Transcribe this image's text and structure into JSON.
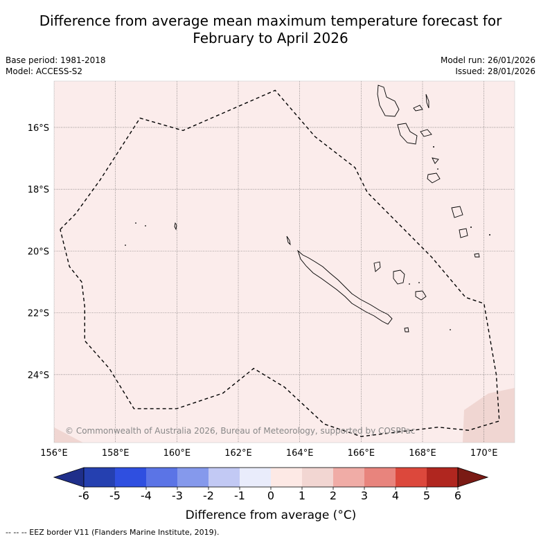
{
  "title_line1": "Difference from average mean maximum temperature forecast for",
  "title_line2": "February to April 2026",
  "base_period": "Base period: 1981-2018",
  "model": "Model: ACCESS-S2",
  "model_run": "Model run: 26/01/2026",
  "issued": "Issued: 28/01/2026",
  "copyright": "© Commonwealth of Australia 2026, Bureau of Meteorology, supported by COSPPac",
  "footnote": "--  --  -- EEZ border V11 (Flanders Marine Institute, 2019).",
  "chart_data": {
    "type": "map",
    "title": "Difference from average mean maximum temperature forecast for February to April 2026",
    "x_axis": {
      "min": 156,
      "max": 171,
      "ticks": [
        156,
        158,
        160,
        162,
        164,
        166,
        168,
        170
      ],
      "labels": [
        "156°E",
        "158°E",
        "160°E",
        "162°E",
        "164°E",
        "166°E",
        "168°E",
        "170°E"
      ]
    },
    "y_axis": {
      "min": -26.2,
      "max": -14.5,
      "ticks": [
        -16,
        -18,
        -20,
        -22,
        -24
      ],
      "labels": [
        "16°S",
        "18°S",
        "20°S",
        "22°S",
        "24°S"
      ]
    },
    "background_anomaly_bin": "0 to 1",
    "corner_anomaly_bin": "1 to 2",
    "eez_border": [
      [
        156.2,
        -19.3
      ],
      [
        156.7,
        -18.8
      ],
      [
        157.5,
        -17.7
      ],
      [
        158.8,
        -15.7
      ],
      [
        160.2,
        -16.1
      ],
      [
        163.2,
        -14.8
      ],
      [
        164.5,
        -16.3
      ],
      [
        165.8,
        -17.3
      ],
      [
        166.2,
        -18.1
      ],
      [
        167.2,
        -19.1
      ],
      [
        168.3,
        -20.2
      ],
      [
        169.4,
        -21.5
      ],
      [
        170,
        -21.7
      ],
      [
        170.4,
        -24
      ],
      [
        170.5,
        -25.5
      ],
      [
        169.5,
        -25.8
      ],
      [
        168.5,
        -25.7
      ],
      [
        166,
        -26
      ],
      [
        164.8,
        -25.6
      ],
      [
        163.5,
        -24.4
      ],
      [
        162.5,
        -23.8
      ],
      [
        161.5,
        -24.6
      ],
      [
        160,
        -25.1
      ],
      [
        158.6,
        -25.1
      ],
      [
        157.8,
        -23.8
      ],
      [
        157,
        -22.9
      ],
      [
        157,
        -21.8
      ],
      [
        156.9,
        -21
      ],
      [
        156.5,
        -20.5
      ],
      [
        156.2,
        -19.3
      ]
    ],
    "colorbar": {
      "label": "Difference from average (°C)",
      "label_text": "Difference from average (",
      "label_unit": "°C)",
      "tick_labels": [
        "-6",
        "-5",
        "-4",
        "-3",
        "-2",
        "-1",
        "0",
        "1",
        "2",
        "3",
        "4",
        "5",
        "6"
      ],
      "colors": [
        "#1f2f8a",
        "#2540b0",
        "#2f4fe0",
        "#5b74e6",
        "#8599ec",
        "#c2c9f4",
        "#e9ecfb",
        "#fde9e5",
        "#f2d6d2",
        "#f0aca6",
        "#e8847d",
        "#dc483c",
        "#b0261f",
        "#7a1a14"
      ]
    }
  }
}
